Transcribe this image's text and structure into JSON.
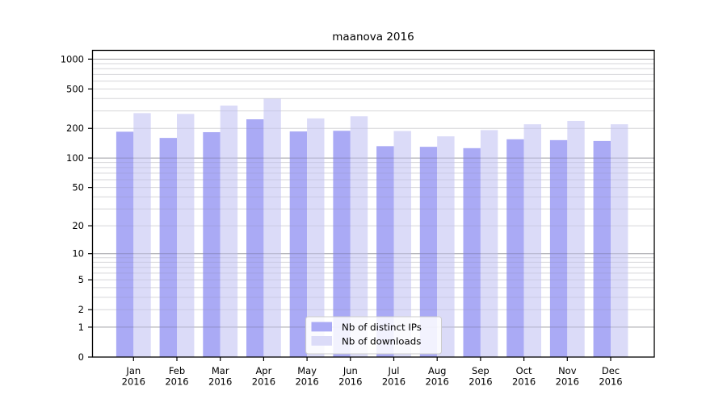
{
  "title": "maanova 2016",
  "legend": {
    "items": [
      {
        "label": "Nb of distinct IPs",
        "color": "#aaaaf5"
      },
      {
        "label": "Nb of downloads",
        "color": "#dbdbf8"
      }
    ]
  },
  "colors": {
    "bar_ips": "#aaaaf5",
    "bar_downloads": "#dbdbf8",
    "axis": "#000000",
    "grid_major": "#c6c6ca",
    "grid_minor": "#e9e9eb",
    "legend_border": "#cccccc",
    "legend_bg": "#ffffff"
  },
  "chart_data": {
    "type": "bar",
    "title": "maanova 2016",
    "xlabel": "",
    "ylabel": "",
    "scale": "log10(1+x)",
    "grid": true,
    "legend_position": "inside-bottom-center",
    "ylim": [
      0,
      1000
    ],
    "y_ticks": [
      0,
      1,
      2,
      5,
      10,
      20,
      50,
      100,
      200,
      500,
      1000
    ],
    "categories": [
      "Jan",
      "Feb",
      "Mar",
      "Apr",
      "May",
      "Jun",
      "Jul",
      "Aug",
      "Sep",
      "Oct",
      "Nov",
      "Dec"
    ],
    "year": "2016",
    "series": [
      {
        "name": "Nb of distinct IPs",
        "values": [
          185,
          160,
          183,
          247,
          186,
          189,
          132,
          130,
          126,
          155,
          152,
          149
        ]
      },
      {
        "name": "Nb of downloads",
        "values": [
          285,
          280,
          340,
          400,
          252,
          265,
          188,
          166,
          192,
          220,
          238,
          220
        ]
      }
    ]
  }
}
